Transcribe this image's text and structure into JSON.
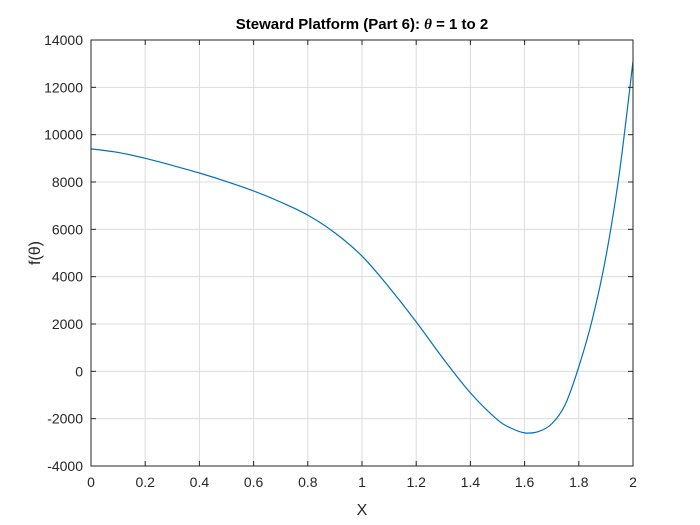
{
  "chart_data": {
    "type": "line",
    "title": "Steward Platform (Part 6):  θ = 1 to 2",
    "title_prefix": "Steward Platform (Part 6):  ",
    "title_theta": "θ",
    "title_suffix": " = 1 to 2",
    "xlabel": "X",
    "ylabel": "f(θ)",
    "xlim": [
      0,
      2
    ],
    "ylim": [
      -4000,
      14000
    ],
    "xticks": [
      0,
      0.2,
      0.4,
      0.6,
      0.8,
      1,
      1.2,
      1.4,
      1.6,
      1.8,
      2
    ],
    "xtick_labels": [
      "0",
      "0.2",
      "0.4",
      "0.6",
      "0.8",
      "1",
      "1.2",
      "1.4",
      "1.6",
      "1.8",
      "2"
    ],
    "yticks": [
      -4000,
      -2000,
      0,
      2000,
      4000,
      6000,
      8000,
      10000,
      12000,
      14000
    ],
    "ytick_labels": [
      "-4000",
      "-2000",
      "0",
      "2000",
      "4000",
      "6000",
      "8000",
      "10000",
      "12000",
      "14000"
    ],
    "grid": true,
    "series": [
      {
        "name": "f(θ)",
        "color": "#0072bd",
        "x": [
          0,
          0.1,
          0.2,
          0.3,
          0.4,
          0.5,
          0.6,
          0.7,
          0.8,
          0.9,
          1.0,
          1.1,
          1.2,
          1.3,
          1.4,
          1.5,
          1.55,
          1.6,
          1.65,
          1.7,
          1.75,
          1.8,
          1.85,
          1.9,
          1.95,
          2.0
        ],
        "y": [
          9400,
          9250,
          9000,
          8700,
          8380,
          8020,
          7620,
          7150,
          6600,
          5850,
          4870,
          3550,
          2090,
          530,
          -910,
          -2050,
          -2400,
          -2600,
          -2550,
          -2220,
          -1400,
          190,
          2200,
          4840,
          8400,
          13100
        ]
      }
    ]
  }
}
